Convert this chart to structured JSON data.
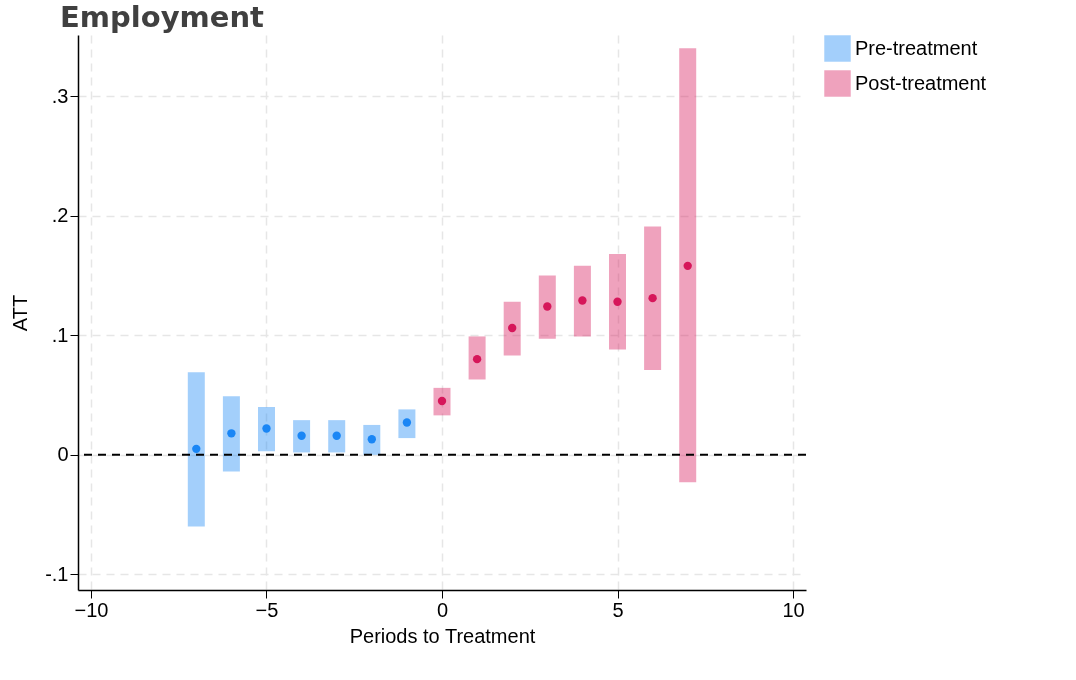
{
  "chart_data": {
    "type": "scatter",
    "title": "Employment",
    "xlabel": "Periods to Treatment",
    "ylabel": "ATT",
    "series": [
      {
        "name": "Pre-treatment",
        "color": "#1a86f5",
        "x": [
          -7,
          -6,
          -5,
          -4,
          -3,
          -2,
          -1
        ],
        "values": [
          0.005,
          0.018,
          0.022,
          0.016,
          0.016,
          0.013,
          0.027
        ],
        "errors": [
          [
            -0.06,
            0.069
          ],
          [
            -0.014,
            0.049
          ],
          [
            0.003,
            0.04
          ],
          [
            0.002,
            0.029
          ],
          [
            0.002,
            0.029
          ],
          [
            0.0,
            0.025
          ],
          [
            0.014,
            0.038
          ]
        ]
      },
      {
        "name": "Post-treatment",
        "color": "#d6165a",
        "x": [
          0,
          1,
          2,
          3,
          4,
          5,
          6,
          7
        ],
        "values": [
          0.045,
          0.08,
          0.106,
          0.124,
          0.129,
          0.128,
          0.131,
          0.158
        ],
        "errors": [
          [
            0.033,
            0.056
          ],
          [
            0.063,
            0.099
          ],
          [
            0.083,
            0.128
          ],
          [
            0.097,
            0.15
          ],
          [
            0.099,
            0.158
          ],
          [
            0.088,
            0.168
          ],
          [
            0.071,
            0.191
          ],
          [
            -0.023,
            0.34
          ]
        ]
      }
    ],
    "xlim": [
      -10.37,
      10.37
    ],
    "xticks": [
      -10,
      -5,
      0,
      5,
      10
    ],
    "ylim": [
      -0.113,
      0.351
    ],
    "yticks": [
      {
        "value": -0.1,
        "label": "-.1"
      },
      0,
      {
        "value": 0.1,
        "label": ".1"
      },
      {
        "value": 0.2,
        "label": ".2"
      },
      {
        "value": 0.3,
        "label": ".3"
      }
    ],
    "ref_lines": [
      {
        "axis": "y",
        "value": 0,
        "color": "#000000",
        "line_style": "dashed"
      }
    ],
    "grid": true,
    "legend": "right",
    "marker": "circle"
  }
}
